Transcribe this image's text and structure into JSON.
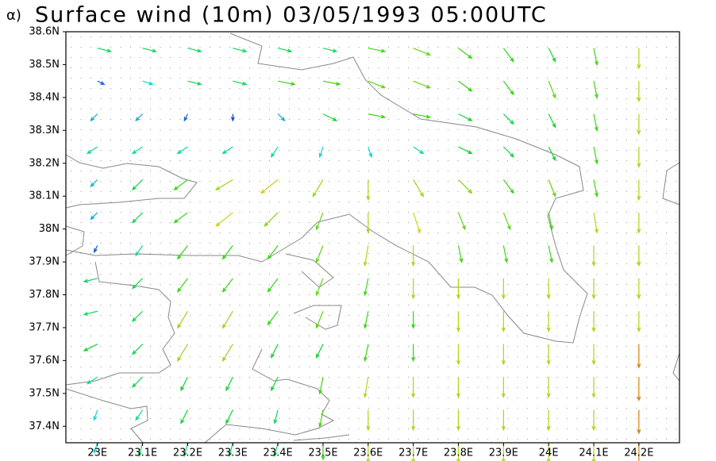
{
  "chart_data": {
    "type": "quiver",
    "panel_label": "α)",
    "title": "Surface wind (10m) 03/05/1993 05:00UTC",
    "lon": [
      23.0,
      23.1,
      23.2,
      23.3,
      23.4,
      23.5,
      23.6,
      23.7,
      23.8,
      23.9,
      24.0,
      24.1,
      24.2
    ],
    "lat": [
      38.55,
      38.45,
      38.35,
      38.25,
      38.15,
      38.05,
      37.95,
      37.85,
      37.75,
      37.65,
      37.55,
      37.45,
      37.35
    ],
    "u": [
      [
        4,
        4,
        4,
        4,
        4,
        4,
        5,
        5,
        4,
        3,
        2,
        1,
        0
      ],
      [
        2,
        3,
        4,
        4,
        5,
        5,
        5,
        5,
        4,
        3,
        2,
        1,
        0
      ],
      [
        -2,
        -2,
        -1,
        0,
        2,
        4,
        5,
        5,
        4,
        3,
        2,
        1,
        0
      ],
      [
        -3,
        -3,
        -3,
        -3,
        -2,
        -1,
        1,
        3,
        4,
        3,
        2,
        1,
        0
      ],
      [
        -2,
        -3,
        -4,
        -5,
        -5,
        -3,
        0,
        3,
        4,
        3,
        2,
        1,
        0
      ],
      [
        -2,
        -3,
        -4,
        -5,
        -4,
        -2,
        0,
        2,
        2,
        2,
        1,
        1,
        0
      ],
      [
        -1,
        -2,
        -3,
        -3,
        -3,
        -2,
        -1,
        0,
        1,
        1,
        1,
        0,
        0
      ],
      [
        -4,
        -3,
        -3,
        -3,
        -3,
        -2,
        -1,
        0,
        0,
        0,
        0,
        0,
        0
      ],
      [
        -4,
        -3,
        -3,
        -3,
        -3,
        -2,
        -1,
        0,
        0,
        0,
        0,
        0,
        0
      ],
      [
        -4,
        -3,
        -3,
        -3,
        -2,
        -2,
        -1,
        0,
        0,
        0,
        0,
        0,
        0
      ],
      [
        -3,
        -3,
        -2,
        -2,
        -2,
        -1,
        -1,
        0,
        0,
        0,
        0,
        0,
        0
      ],
      [
        -1,
        -2,
        -2,
        -2,
        -1,
        -1,
        0,
        0,
        0,
        0,
        0,
        0,
        0
      ],
      [
        -1,
        -1,
        -1,
        -1,
        -1,
        0,
        0,
        0,
        0,
        0,
        0,
        0,
        0
      ]
    ],
    "v": [
      [
        -1,
        -1,
        -1,
        -1,
        -1,
        -1,
        -1,
        -2,
        -3,
        -4,
        -4,
        -5,
        -6
      ],
      [
        -1,
        -1,
        -1,
        -1,
        -1,
        -1,
        -2,
        -2,
        -3,
        -4,
        -5,
        -5,
        -6
      ],
      [
        -2,
        -2,
        -2,
        -2,
        -2,
        -2,
        -1,
        -1,
        -2,
        -3,
        -4,
        -5,
        -6
      ],
      [
        -2,
        -2,
        -2,
        -2,
        -3,
        -3,
        -3,
        -2,
        -2,
        -3,
        -4,
        -5,
        -6
      ],
      [
        -2,
        -3,
        -3,
        -3,
        -4,
        -5,
        -6,
        -5,
        -4,
        -4,
        -5,
        -5,
        -6
      ],
      [
        -2,
        -3,
        -3,
        -4,
        -4,
        -5,
        -6,
        -6,
        -5,
        -5,
        -5,
        -6,
        -6
      ],
      [
        -2,
        -3,
        -4,
        -4,
        -4,
        -5,
        -6,
        -6,
        -5,
        -5,
        -5,
        -6,
        -6
      ],
      [
        -1,
        -3,
        -4,
        -4,
        -4,
        -5,
        -5,
        -6,
        -6,
        -6,
        -6,
        -6,
        -6
      ],
      [
        -1,
        -3,
        -5,
        -5,
        -4,
        -5,
        -5,
        -5,
        -6,
        -6,
        -6,
        -6,
        -6
      ],
      [
        -2,
        -3,
        -5,
        -5,
        -4,
        -4,
        -5,
        -5,
        -6,
        -6,
        -6,
        -6,
        -7
      ],
      [
        -2,
        -3,
        -4,
        -4,
        -4,
        -5,
        -6,
        -6,
        -6,
        -6,
        -6,
        -6,
        -7
      ],
      [
        -3,
        -3,
        -4,
        -4,
        -4,
        -5,
        -6,
        -6,
        -6,
        -6,
        -6,
        -6,
        -7
      ],
      [
        -3,
        -4,
        -4,
        -4,
        -4,
        -5,
        -6,
        -6,
        -6,
        -6,
        -6,
        -6,
        -7
      ]
    ],
    "xlim": [
      22.93,
      24.29
    ],
    "ylim": [
      37.35,
      38.6
    ],
    "xticks": [
      {
        "value": 23.0,
        "label": "23E"
      },
      {
        "value": 23.1,
        "label": "23.1E"
      },
      {
        "value": 23.2,
        "label": "23.2E"
      },
      {
        "value": 23.3,
        "label": "23.3E"
      },
      {
        "value": 23.4,
        "label": "23.4E"
      },
      {
        "value": 23.5,
        "label": "23.5E"
      },
      {
        "value": 23.6,
        "label": "23.6E"
      },
      {
        "value": 23.7,
        "label": "23.7E"
      },
      {
        "value": 23.8,
        "label": "23.8E"
      },
      {
        "value": 23.9,
        "label": "23.9E"
      },
      {
        "value": 24.0,
        "label": "24E"
      },
      {
        "value": 24.1,
        "label": "24.1E"
      },
      {
        "value": 24.2,
        "label": "24.2E"
      }
    ],
    "yticks": [
      {
        "value": 37.4,
        "label": "37.4N"
      },
      {
        "value": 37.5,
        "label": "37.5N"
      },
      {
        "value": 37.6,
        "label": "37.6N"
      },
      {
        "value": 37.7,
        "label": "37.7N"
      },
      {
        "value": 37.8,
        "label": "37.8N"
      },
      {
        "value": 37.9,
        "label": "37.9N"
      },
      {
        "value": 38.0,
        "label": "38N"
      },
      {
        "value": 38.1,
        "label": "38.1N"
      },
      {
        "value": 38.2,
        "label": "38.2N"
      },
      {
        "value": 38.3,
        "label": "38.3N"
      },
      {
        "value": 38.4,
        "label": "38.4N"
      },
      {
        "value": 38.5,
        "label": "38.5N"
      },
      {
        "value": 38.6,
        "label": "38.6N"
      }
    ]
  }
}
